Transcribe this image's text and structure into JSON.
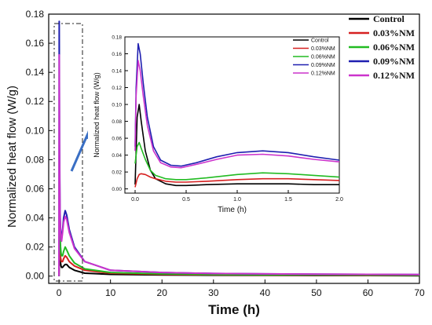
{
  "chart_data": [
    {
      "type": "line",
      "xlabel": "Time (h)",
      "ylabel": "Normalized heat flow (W/g)",
      "xlim": [
        -2,
        70
      ],
      "ylim": [
        -0.005,
        0.18
      ],
      "x_ticks": [
        "0",
        "10",
        "20",
        "30",
        "40",
        "50",
        "60",
        "70"
      ],
      "y_ticks": [
        "0.00",
        "0.02",
        "0.04",
        "0.06",
        "0.08",
        "0.10",
        "0.12",
        "0.14",
        "0.16",
        "0.18"
      ],
      "grid": false,
      "legend_position": "top-right",
      "legend": [
        "Control",
        "0.03%NM",
        "0.06%NM",
        "0.09%NM",
        "0.12%NM"
      ],
      "series": [
        {
          "name": "Control",
          "color": "#000000",
          "x": [
            0,
            0.1,
            0.2,
            0.3,
            0.4,
            0.5,
            0.7,
            0.9,
            1.2,
            1.5,
            2,
            3,
            5,
            10,
            20,
            30,
            40,
            50,
            60,
            70
          ],
          "y": [
            0,
            0.018,
            0.012,
            0.009,
            0.007,
            0.006,
            0.006,
            0.007,
            0.008,
            0.008,
            0.006,
            0.004,
            0.002,
            0.0012,
            0.0008,
            0.0006,
            0.0005,
            0.0004,
            0.0004,
            0.0003
          ]
        },
        {
          "name": "0.03%NM",
          "color": "#d62020",
          "x": [
            0,
            0.1,
            0.2,
            0.3,
            0.4,
            0.5,
            0.7,
            0.9,
            1.2,
            1.5,
            2,
            3,
            5,
            10,
            20,
            30,
            40,
            50,
            60,
            70
          ],
          "y": [
            0,
            0.02,
            0.016,
            0.013,
            0.011,
            0.01,
            0.01,
            0.012,
            0.014,
            0.013,
            0.01,
            0.007,
            0.004,
            0.002,
            0.0012,
            0.0009,
            0.0007,
            0.0006,
            0.0005,
            0.0005
          ]
        },
        {
          "name": "0.06%NM",
          "color": "#22bb22",
          "x": [
            0,
            0.1,
            0.2,
            0.3,
            0.4,
            0.5,
            0.7,
            0.9,
            1.2,
            1.5,
            2,
            3,
            5,
            10,
            20,
            30,
            40,
            50,
            60,
            70
          ],
          "y": [
            0,
            0.055,
            0.03,
            0.02,
            0.016,
            0.014,
            0.014,
            0.017,
            0.02,
            0.018,
            0.014,
            0.009,
            0.005,
            0.0025,
            0.0015,
            0.0011,
            0.0009,
            0.0008,
            0.0007,
            0.0006
          ]
        },
        {
          "name": "0.09%NM",
          "color": "#1f1fb0",
          "x": [
            0,
            0.05,
            0.1,
            0.2,
            0.3,
            0.4,
            0.5,
            0.7,
            0.9,
            1.2,
            1.5,
            2,
            3,
            5,
            10,
            20,
            30,
            40,
            50,
            60,
            70
          ],
          "y": [
            0,
            0.175,
            0.09,
            0.045,
            0.032,
            0.027,
            0.026,
            0.032,
            0.04,
            0.045,
            0.042,
            0.032,
            0.02,
            0.01,
            0.004,
            0.0025,
            0.0018,
            0.0015,
            0.0013,
            0.0012,
            0.0011
          ]
        },
        {
          "name": "0.12%NM",
          "color": "#cc33cc",
          "x": [
            0,
            0.05,
            0.1,
            0.2,
            0.3,
            0.4,
            0.5,
            0.7,
            0.9,
            1.2,
            1.5,
            2,
            3,
            5,
            10,
            20,
            30,
            40,
            50,
            60,
            70
          ],
          "y": [
            0,
            0.152,
            0.08,
            0.042,
            0.03,
            0.025,
            0.024,
            0.03,
            0.037,
            0.041,
            0.039,
            0.03,
            0.019,
            0.01,
            0.004,
            0.0025,
            0.0018,
            0.0015,
            0.0013,
            0.0012,
            0.0011
          ]
        }
      ]
    },
    {
      "type": "line",
      "xlabel": "Time (h)",
      "ylabel": "Normalized heat flow (W/g)",
      "xlim": [
        -0.1,
        2.0
      ],
      "ylim": [
        -0.005,
        0.18
      ],
      "x_ticks": [
        "0.0",
        "0.5",
        "1.0",
        "1.5",
        "2.0"
      ],
      "y_ticks": [
        "0.00",
        "0.02",
        "0.04",
        "0.06",
        "0.08",
        "0.10",
        "0.12",
        "0.14",
        "0.16",
        "0.18"
      ],
      "grid": false,
      "legend_position": "top-left",
      "legend": [
        "Control",
        "0.03%NM",
        "0.06%NM",
        "0.09%NM",
        "0.12%NM"
      ],
      "series": [
        {
          "name": "Control",
          "color": "#000000",
          "x": [
            0,
            0.02,
            0.04,
            0.06,
            0.1,
            0.15,
            0.2,
            0.3,
            0.4,
            0.5,
            0.7,
            1.0,
            1.25,
            1.5,
            1.75,
            2.0
          ],
          "y": [
            0.005,
            0.085,
            0.1,
            0.08,
            0.045,
            0.022,
            0.012,
            0.006,
            0.004,
            0.004,
            0.005,
            0.006,
            0.006,
            0.006,
            0.005,
            0.005
          ]
        },
        {
          "name": "0.03%NM",
          "color": "#d62020",
          "x": [
            0,
            0.02,
            0.04,
            0.06,
            0.1,
            0.15,
            0.2,
            0.3,
            0.4,
            0.5,
            0.7,
            1.0,
            1.25,
            1.5,
            1.75,
            2.0
          ],
          "y": [
            0.002,
            0.012,
            0.017,
            0.018,
            0.017,
            0.014,
            0.012,
            0.009,
            0.008,
            0.008,
            0.009,
            0.011,
            0.012,
            0.012,
            0.011,
            0.01
          ]
        },
        {
          "name": "0.06%NM",
          "color": "#22bb22",
          "x": [
            0,
            0.02,
            0.04,
            0.06,
            0.1,
            0.15,
            0.2,
            0.3,
            0.4,
            0.5,
            0.7,
            1.0,
            1.25,
            1.5,
            1.75,
            2.0
          ],
          "y": [
            0.03,
            0.05,
            0.055,
            0.048,
            0.035,
            0.022,
            0.016,
            0.012,
            0.011,
            0.011,
            0.013,
            0.017,
            0.019,
            0.018,
            0.016,
            0.014
          ]
        },
        {
          "name": "0.09%NM",
          "color": "#1f1fb0",
          "x": [
            0,
            0.01,
            0.03,
            0.05,
            0.08,
            0.12,
            0.18,
            0.25,
            0.35,
            0.45,
            0.6,
            0.8,
            1.0,
            1.25,
            1.5,
            1.75,
            2.0
          ],
          "y": [
            0.05,
            0.12,
            0.172,
            0.16,
            0.125,
            0.085,
            0.05,
            0.034,
            0.028,
            0.027,
            0.031,
            0.038,
            0.043,
            0.045,
            0.043,
            0.038,
            0.034
          ]
        },
        {
          "name": "0.12%NM",
          "color": "#cc33cc",
          "x": [
            0,
            0.01,
            0.03,
            0.05,
            0.08,
            0.12,
            0.18,
            0.25,
            0.35,
            0.45,
            0.6,
            0.8,
            1.0,
            1.25,
            1.5,
            1.75,
            2.0
          ],
          "y": [
            0.045,
            0.11,
            0.152,
            0.14,
            0.11,
            0.075,
            0.045,
            0.031,
            0.026,
            0.025,
            0.029,
            0.035,
            0.04,
            0.041,
            0.039,
            0.035,
            0.032
          ]
        }
      ]
    }
  ]
}
